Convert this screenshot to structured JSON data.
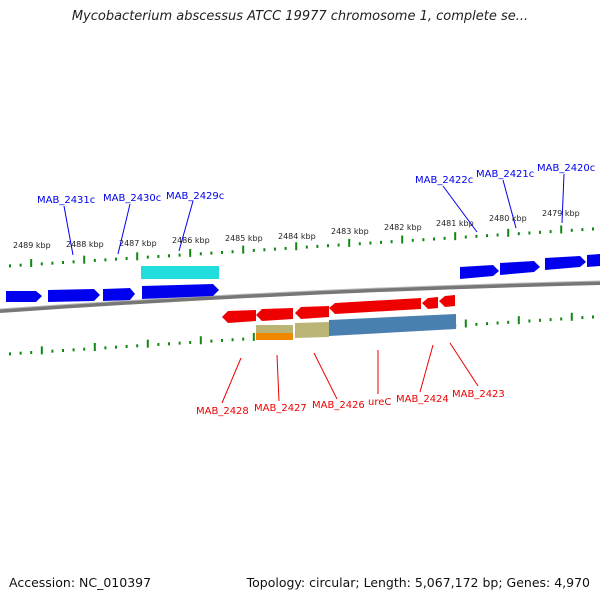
{
  "title": "Mycobacterium abscessus ATCC 19977 chromosome 1, complete se...",
  "footer": {
    "accession": "Accession: NC_010397",
    "summary": "Topology: circular; Length: 5,067,172 bp; Genes: 4,970"
  },
  "scale_labels": [
    "2489 kbp",
    "2488 kbp",
    "2487 kbp",
    "2486 kbp",
    "2485 kbp",
    "2484 kbp",
    "2483 kbp",
    "2482 kbp",
    "2481 kbp",
    "2480 kbp",
    "2479 kbp"
  ],
  "forward_gene_labels": [
    "MAB_2431c",
    "MAB_2430c",
    "MAB_2429c",
    "MAB_2422c",
    "MAB_2421c",
    "MAB_2420c"
  ],
  "reverse_gene_labels": [
    "MAB_2428",
    "MAB_2427",
    "MAB_2426",
    "ureC",
    "MAB_2424",
    "MAB_2423"
  ],
  "colors": {
    "forward": "#0000ee",
    "reverse": "#ee0000",
    "tick": "#118811",
    "backbone": "#888888",
    "cyan": "#22dddd",
    "tan": "#bbb477",
    "orange": "#ee8800",
    "steel": "#4a80b0"
  }
}
